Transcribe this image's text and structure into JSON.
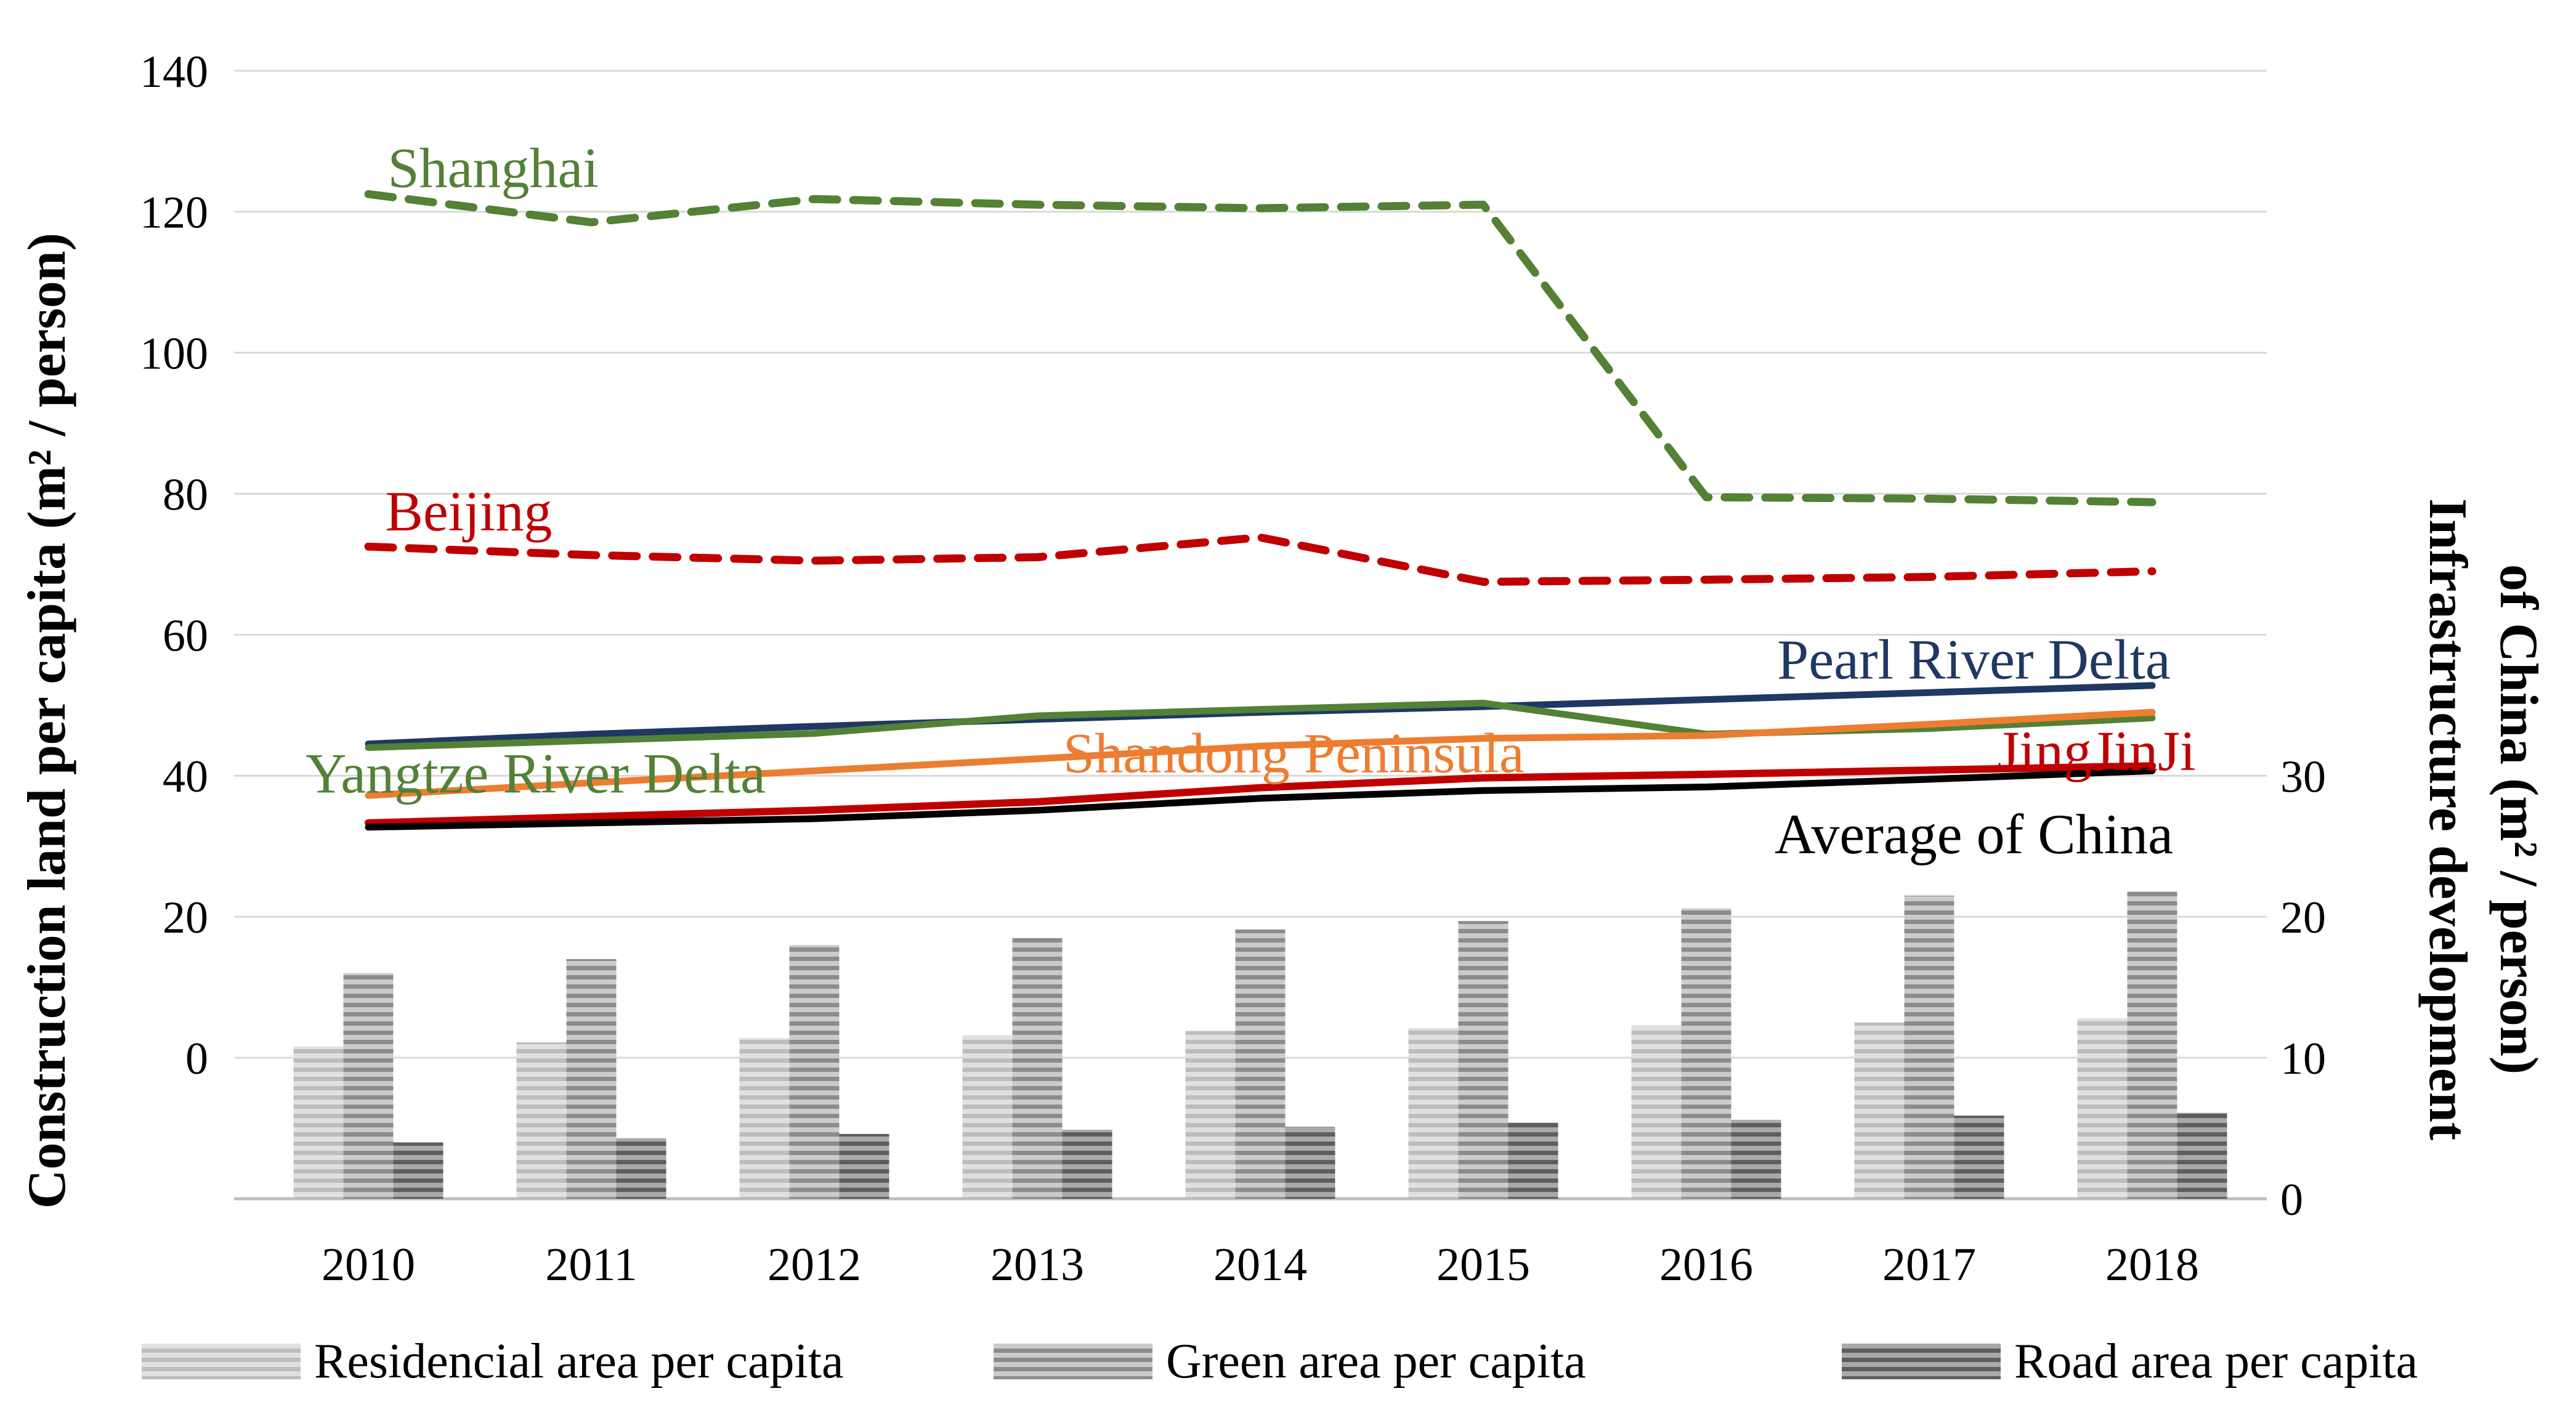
{
  "chart_data": {
    "type": "combo",
    "categories": [
      "2010",
      "2011",
      "2012",
      "2013",
      "2014",
      "2015",
      "2016",
      "2017",
      "2018"
    ],
    "left_axis": {
      "title": "Construction land per capita (m² / person)",
      "ticks": [
        0,
        20,
        40,
        60,
        80,
        100,
        120,
        140
      ],
      "range": [
        0,
        140
      ],
      "grid": true
    },
    "right_axis": {
      "title_line1": "Infrastructure development",
      "title_line2": "of China (m² / person)",
      "ticks": [
        0,
        10,
        20,
        30
      ],
      "range": [
        0,
        30
      ]
    },
    "line_series": [
      {
        "name": "Shanghai",
        "color": "#538135",
        "dashed": true,
        "width": 13,
        "values": [
          122.5,
          118.5,
          121.8,
          121,
          120.5,
          121,
          79.5,
          79.3,
          78.8
        ]
      },
      {
        "name": "Beijing",
        "color": "#C00000",
        "dashed": true,
        "width": 13,
        "values": [
          72.5,
          71.3,
          70.5,
          71,
          73.8,
          67.5,
          67.8,
          68.2,
          69
        ]
      },
      {
        "name": "Pearl River Delta",
        "color": "#1F3864",
        "dashed": false,
        "width": 11,
        "values": [
          44.5,
          45.9,
          47,
          48,
          49,
          49.8,
          50.8,
          51.8,
          52.8
        ]
      },
      {
        "name": "Yangtze River Delta",
        "color": "#538135",
        "dashed": false,
        "width": 11,
        "values": [
          44,
          45,
          46,
          48.5,
          49.4,
          50.3,
          45.9,
          46.7,
          48.2
        ]
      },
      {
        "name": "Shandong Peninsula",
        "color": "#ED7D31",
        "dashed": false,
        "width": 11,
        "values": [
          37.2,
          39,
          40.7,
          42.4,
          44.2,
          45.3,
          45.7,
          47.3,
          49
        ]
      },
      {
        "name": "JingJinJi",
        "color": "#C00000",
        "dashed": false,
        "width": 12,
        "values": [
          33.3,
          34.2,
          35.1,
          36.3,
          38.3,
          39.7,
          40.2,
          40.8,
          41.4
        ]
      },
      {
        "name": "Average of China",
        "color": "#000000",
        "dashed": false,
        "width": 11,
        "values": [
          32.7,
          33.3,
          33.9,
          35.1,
          36.8,
          37.9,
          38.4,
          39.5,
          40.7
        ]
      }
    ],
    "bar_series": [
      {
        "name": "Residencial area per capita",
        "stripe_light": "#e0e0e0",
        "stripe_dark": "#bdbdbd",
        "values": [
          10.8,
          11.1,
          11.4,
          11.6,
          11.9,
          12.1,
          12.3,
          12.5,
          12.8
        ]
      },
      {
        "name": "Green area per capita",
        "stripe_light": "#cbcbcb",
        "stripe_dark": "#8c8c8c",
        "values": [
          16,
          17,
          18,
          18.5,
          19.1,
          19.7,
          20.6,
          21.5,
          21.8
        ]
      },
      {
        "name": "Road area per capita",
        "stripe_light": "#a9a9a9",
        "stripe_dark": "#5e5e5e",
        "values": [
          4,
          4.3,
          4.6,
          4.9,
          5.1,
          5.4,
          5.6,
          5.9,
          6.1
        ]
      }
    ],
    "annotations": [
      {
        "text": "Shanghai",
        "color": "#538135",
        "x": 2010.56,
        "y": 126.3
      },
      {
        "text": "Beijing",
        "color": "#C00000",
        "x": 2010.45,
        "y": 77.6
      },
      {
        "text": "Pearl River Delta",
        "color": "#1F3864",
        "x": 2017.2,
        "y": 56.6
      },
      {
        "text": "Yangtze River Delta",
        "color": "#538135",
        "x": 2010.75,
        "y": 40.4
      },
      {
        "text": "Shandong Peninsula",
        "color": "#ED7D31",
        "x": 2014.15,
        "y": 43.3
      },
      {
        "text": "JingJinJi",
        "color": "#C00000",
        "x": 2017.75,
        "y": 43.6
      },
      {
        "text": "Average of China",
        "color": "#000000",
        "x": 2017.2,
        "y": 31.8
      }
    ],
    "legend_position": "bottom",
    "grid_color": "#D9D9D9",
    "axisline_color": "#BFBFBF"
  },
  "legend": {
    "items": [
      {
        "label": "Residencial area per capita"
      },
      {
        "label": "Green area per capita"
      },
      {
        "label": "Road area per capita"
      }
    ]
  }
}
